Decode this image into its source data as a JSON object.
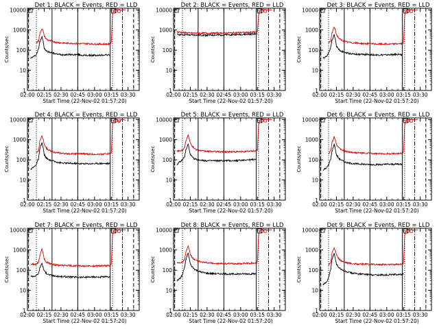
{
  "figure": {
    "start_time_label": "Start Time (22-Nov-02 01:57:20)",
    "ylabel": "Counts/sec",
    "title_suffix": ": BLACK = Events, RED = LLD"
  },
  "colors": {
    "events": "#000000",
    "lld": "#e00000",
    "axes": "#000000",
    "background": "#ffffff"
  },
  "axes": {
    "x_ticks": [
      "02:00",
      "02:15",
      "02:30",
      "02:45",
      "03:00",
      "03:15",
      "03:30"
    ],
    "x_tick_minutes": [
      0,
      15,
      30,
      45,
      60,
      75,
      90
    ],
    "x_range_minutes": [
      0,
      100
    ],
    "y_ticks": [
      "1",
      "10",
      "100",
      "1000",
      "10000"
    ],
    "y_tick_values": [
      1,
      10,
      100,
      1000,
      10000
    ],
    "y_range": [
      1,
      12000
    ],
    "y_scale": "log"
  },
  "markers": {
    "dashed_minutes": [
      1,
      95
    ],
    "dotted_minutes": [
      8,
      76
    ],
    "dashdot_minutes": [
      85
    ],
    "solid_minutes": [
      22,
      45,
      74
    ]
  },
  "chart_data": [
    {
      "type": "line",
      "title": "Det 1",
      "detector": "1",
      "series": [
        {
          "name": "BLACK = Events",
          "color": "#000000",
          "x": [
            3,
            6,
            8,
            10,
            11,
            12,
            13,
            14,
            15,
            17,
            19,
            22,
            25,
            30,
            35,
            40,
            45,
            50,
            55,
            60,
            65,
            70,
            74,
            75
          ],
          "y": [
            40,
            50,
            60,
            120,
            250,
            350,
            500,
            300,
            120,
            90,
            80,
            75,
            65,
            60,
            60,
            60,
            60,
            55,
            55,
            55,
            55,
            60,
            55,
            null
          ]
        },
        {
          "name": "RED = LLD",
          "color": "#e00000",
          "x": [
            8,
            10,
            11,
            12,
            13,
            14,
            15,
            17,
            19,
            22,
            25,
            30,
            35,
            40,
            45,
            50,
            55,
            60,
            65,
            70,
            74,
            75,
            76,
            77,
            78,
            79,
            80,
            82,
            84,
            86,
            88
          ],
          "y": [
            220,
            300,
            600,
            900,
            1200,
            900,
            500,
            350,
            300,
            280,
            250,
            230,
            220,
            220,
            210,
            210,
            210,
            200,
            200,
            200,
            200,
            250,
            5000,
            9000,
            10000,
            9500,
            9800,
            10000,
            9500,
            10000,
            10000
          ]
        }
      ]
    },
    {
      "type": "line",
      "title": "Det 2",
      "detector": "2",
      "series": [
        {
          "name": "BLACK = Events",
          "color": "#000000",
          "x": [
            3,
            8,
            15,
            22,
            30,
            40,
            50,
            60,
            70,
            75
          ],
          "y": [
            600,
            580,
            560,
            560,
            550,
            560,
            580,
            600,
            620,
            650
          ]
        },
        {
          "name": "RED = LLD",
          "color": "#e00000",
          "x": [
            3,
            8,
            15,
            22,
            30,
            40,
            50,
            60,
            70,
            75,
            76,
            77,
            78,
            80,
            82,
            84,
            86,
            88
          ],
          "y": [
            800,
            750,
            700,
            700,
            690,
            700,
            720,
            740,
            760,
            800,
            5000,
            9000,
            10000,
            9500,
            10000,
            9800,
            10000,
            10000
          ]
        }
      ]
    },
    {
      "type": "line",
      "title": "Det 3",
      "detector": "3",
      "series": [
        {
          "name": "BLACK = Events",
          "color": "#000000",
          "x": [
            3,
            6,
            8,
            10,
            11,
            12,
            13,
            14,
            15,
            17,
            19,
            22,
            25,
            30,
            35,
            40,
            45,
            50,
            55,
            60,
            65,
            70,
            74,
            75
          ],
          "y": [
            40,
            50,
            70,
            150,
            300,
            400,
            600,
            350,
            160,
            110,
            90,
            80,
            70,
            65,
            62,
            62,
            60,
            58,
            58,
            58,
            60,
            62,
            60,
            null
          ]
        },
        {
          "name": "RED = LLD",
          "color": "#e00000",
          "x": [
            8,
            10,
            11,
            12,
            13,
            14,
            15,
            17,
            19,
            22,
            25,
            30,
            35,
            40,
            45,
            50,
            55,
            60,
            65,
            70,
            74,
            75,
            76,
            77,
            78,
            80,
            82,
            84,
            86,
            88
          ],
          "y": [
            220,
            280,
            700,
            1000,
            1400,
            1000,
            600,
            400,
            320,
            280,
            250,
            230,
            220,
            210,
            210,
            200,
            200,
            200,
            200,
            210,
            210,
            240,
            5000,
            9000,
            10000,
            9500,
            10000,
            9800,
            10000,
            10000
          ]
        }
      ]
    },
    {
      "type": "line",
      "title": "Det 4",
      "detector": "4",
      "series": [
        {
          "name": "BLACK = Events",
          "color": "#000000",
          "x": [
            3,
            6,
            8,
            10,
            11,
            12,
            13,
            14,
            15,
            17,
            19,
            22,
            25,
            30,
            35,
            40,
            45,
            50,
            55,
            60,
            65,
            70,
            74,
            75
          ],
          "y": [
            35,
            45,
            60,
            120,
            300,
            500,
            700,
            400,
            180,
            120,
            100,
            90,
            80,
            70,
            68,
            66,
            65,
            64,
            64,
            65,
            66,
            66,
            65,
            null
          ]
        },
        {
          "name": "RED = LLD",
          "color": "#e00000",
          "x": [
            8,
            10,
            11,
            12,
            13,
            14,
            15,
            17,
            19,
            22,
            25,
            30,
            35,
            40,
            45,
            50,
            55,
            60,
            65,
            70,
            74,
            75,
            76,
            77,
            78,
            80,
            82,
            84,
            86,
            88
          ],
          "y": [
            200,
            300,
            800,
            1200,
            1500,
            1100,
            600,
            380,
            300,
            260,
            230,
            210,
            200,
            200,
            200,
            200,
            190,
            190,
            190,
            200,
            200,
            230,
            5000,
            9000,
            10000,
            9500,
            8000,
            9800,
            10000,
            9000
          ]
        }
      ]
    },
    {
      "type": "line",
      "title": "Det 5",
      "detector": "5",
      "series": [
        {
          "name": "BLACK = Events",
          "color": "#000000",
          "x": [
            3,
            6,
            8,
            10,
            11,
            12,
            13,
            14,
            15,
            17,
            19,
            22,
            25,
            30,
            35,
            40,
            45,
            50,
            55,
            60,
            65,
            70,
            74,
            75
          ],
          "y": [
            60,
            80,
            100,
            150,
            300,
            400,
            600,
            350,
            180,
            130,
            110,
            100,
            95,
            90,
            90,
            90,
            90,
            90,
            90,
            95,
            100,
            100,
            110,
            null
          ]
        },
        {
          "name": "RED = LLD",
          "color": "#e00000",
          "x": [
            3,
            6,
            8,
            10,
            11,
            12,
            13,
            14,
            15,
            17,
            19,
            22,
            25,
            30,
            35,
            40,
            45,
            50,
            55,
            60,
            65,
            70,
            74,
            75,
            76,
            77,
            78,
            80,
            82,
            84,
            86,
            88
          ],
          "y": [
            280,
            280,
            300,
            450,
            900,
            1200,
            1700,
            1200,
            700,
            450,
            350,
            300,
            280,
            260,
            260,
            250,
            250,
            250,
            250,
            250,
            260,
            270,
            280,
            300,
            5000,
            9000,
            10000,
            9500,
            10000,
            9800,
            10000,
            10000
          ]
        }
      ]
    },
    {
      "type": "line",
      "title": "Det 6",
      "detector": "6",
      "series": [
        {
          "name": "BLACK = Events",
          "color": "#000000",
          "x": [
            3,
            6,
            8,
            10,
            11,
            12,
            13,
            14,
            15,
            17,
            19,
            22,
            25,
            30,
            35,
            40,
            45,
            50,
            55,
            60,
            65,
            70,
            74,
            75
          ],
          "y": [
            30,
            40,
            55,
            120,
            250,
            400,
            600,
            350,
            180,
            120,
            100,
            80,
            70,
            65,
            62,
            60,
            58,
            58,
            58,
            60,
            60,
            62,
            60,
            null
          ]
        },
        {
          "name": "RED = LLD",
          "color": "#e00000",
          "x": [
            8,
            10,
            11,
            12,
            13,
            14,
            15,
            17,
            19,
            22,
            25,
            30,
            35,
            40,
            45,
            50,
            55,
            60,
            65,
            70,
            74,
            75,
            76,
            77,
            78,
            80,
            82,
            84,
            86,
            88
          ],
          "y": [
            200,
            280,
            700,
            1000,
            1400,
            1000,
            600,
            400,
            320,
            280,
            250,
            230,
            220,
            210,
            210,
            200,
            200,
            200,
            200,
            210,
            210,
            240,
            5000,
            9000,
            10000,
            9500,
            10000,
            9800,
            10000,
            10000
          ]
        }
      ]
    },
    {
      "type": "line",
      "title": "Det 7",
      "detector": "7",
      "series": [
        {
          "name": "BLACK = Events",
          "color": "#000000",
          "x": [
            3,
            6,
            8,
            10,
            11,
            12,
            13,
            14,
            15,
            17,
            19,
            22,
            25,
            30,
            35,
            40,
            45,
            50,
            55,
            60,
            65,
            70,
            74,
            75
          ],
          "y": [
            50,
            50,
            55,
            70,
            120,
            180,
            220,
            140,
            90,
            70,
            60,
            55,
            50,
            48,
            47,
            46,
            45,
            45,
            45,
            46,
            46,
            46,
            45,
            null
          ]
        },
        {
          "name": "RED = LLD",
          "color": "#e00000",
          "x": [
            3,
            6,
            8,
            10,
            11,
            12,
            13,
            14,
            15,
            17,
            19,
            22,
            25,
            30,
            35,
            40,
            45,
            50,
            55,
            60,
            65,
            70,
            74,
            75,
            76,
            77,
            78,
            80,
            82,
            84,
            86,
            88
          ],
          "y": [
            200,
            190,
            200,
            250,
            500,
            800,
            1100,
            700,
            350,
            250,
            220,
            200,
            180,
            170,
            170,
            165,
            165,
            160,
            160,
            160,
            165,
            165,
            170,
            200,
            5000,
            9000,
            10000,
            9500,
            10000,
            9800,
            10000,
            10000
          ]
        }
      ]
    },
    {
      "type": "line",
      "title": "Det 8",
      "detector": "8",
      "series": [
        {
          "name": "BLACK = Events",
          "color": "#000000",
          "x": [
            3,
            6,
            8,
            10,
            11,
            12,
            13,
            14,
            15,
            17,
            19,
            22,
            25,
            30,
            35,
            40,
            45,
            50,
            55,
            60,
            65,
            70,
            74,
            75
          ],
          "y": [
            30,
            40,
            60,
            150,
            300,
            500,
            700,
            400,
            200,
            140,
            110,
            90,
            80,
            70,
            68,
            66,
            65,
            64,
            64,
            65,
            66,
            66,
            65,
            null
          ]
        },
        {
          "name": "RED = LLD",
          "color": "#e00000",
          "x": [
            3,
            6,
            8,
            10,
            11,
            12,
            13,
            14,
            15,
            17,
            19,
            22,
            25,
            30,
            35,
            40,
            45,
            50,
            55,
            60,
            65,
            70,
            74,
            75,
            76,
            77,
            78,
            80,
            82,
            84,
            86,
            88
          ],
          "y": [
            240,
            240,
            250,
            350,
            800,
            1100,
            1500,
            1100,
            600,
            400,
            320,
            280,
            250,
            230,
            220,
            210,
            210,
            210,
            210,
            210,
            220,
            220,
            230,
            260,
            5000,
            9000,
            10000,
            9500,
            10000,
            9800,
            10000,
            10000
          ]
        }
      ]
    },
    {
      "type": "line",
      "title": "Det 9",
      "detector": "9",
      "series": [
        {
          "name": "BLACK = Events",
          "color": "#000000",
          "x": [
            3,
            6,
            8,
            10,
            11,
            12,
            13,
            14,
            15,
            17,
            19,
            22,
            25,
            30,
            35,
            40,
            45,
            50,
            55,
            60,
            65,
            70,
            74,
            75,
            76
          ],
          "y": [
            20,
            25,
            40,
            120,
            300,
            500,
            700,
            400,
            200,
            140,
            110,
            90,
            80,
            70,
            65,
            62,
            60,
            58,
            58,
            58,
            60,
            62,
            60,
            65,
            null
          ]
        },
        {
          "name": "RED = LLD",
          "color": "#e00000",
          "x": [
            8,
            10,
            11,
            12,
            13,
            14,
            15,
            17,
            19,
            22,
            25,
            30,
            35,
            40,
            45,
            50,
            55,
            60,
            65,
            70,
            74,
            75,
            76,
            77,
            78,
            80,
            82,
            84,
            86,
            88
          ],
          "y": [
            180,
            260,
            700,
            1000,
            1300,
            900,
            550,
            380,
            300,
            260,
            230,
            210,
            200,
            200,
            195,
            195,
            190,
            190,
            190,
            195,
            200,
            220,
            5000,
            9000,
            10000,
            9500,
            10000,
            9800,
            10000,
            10000
          ]
        }
      ]
    }
  ]
}
